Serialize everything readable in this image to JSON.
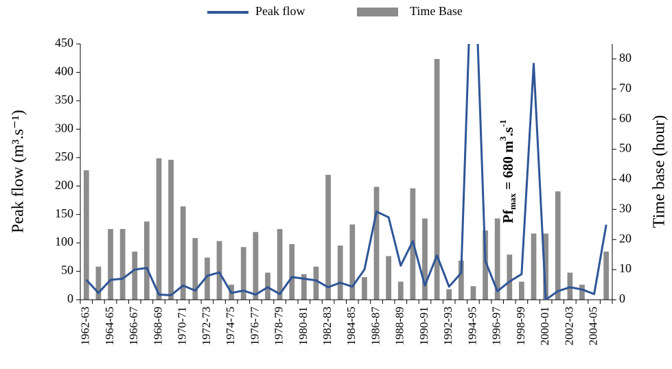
{
  "chart_data": {
    "type": "bar-line",
    "categories": [
      "1962-63",
      null,
      "1964-65",
      null,
      "1966-67",
      null,
      "1968-69",
      null,
      "1970-71",
      null,
      "1972-73",
      null,
      "1974-75",
      null,
      "1976-77",
      null,
      "1978-79",
      null,
      "1980-81",
      null,
      "1982-83",
      null,
      "1984-85",
      null,
      "1986-87",
      null,
      "1988-89",
      null,
      "1990-91",
      null,
      "1992-93",
      null,
      "1994-95",
      null,
      "1996-97",
      null,
      "1998-99",
      null,
      "2000-01",
      null,
      "2002-03",
      null,
      "2004-05",
      null
    ],
    "series": [
      {
        "name": "Peak flow",
        "type": "line",
        "color": "#2e5597",
        "axis": "y",
        "values": [
          35,
          12,
          35,
          37,
          53,
          56,
          9,
          8,
          25,
          16,
          42,
          48,
          12,
          16,
          9,
          22,
          10,
          40,
          37,
          34,
          22,
          30,
          23,
          53,
          155,
          145,
          60,
          103,
          25,
          78,
          23,
          47,
          680,
          68,
          15,
          32,
          45,
          415,
          0,
          15,
          22,
          18,
          10,
          132
        ]
      },
      {
        "name": "Time Base",
        "type": "bar",
        "color": "#8c8c8c",
        "axis": "y2",
        "values": [
          43,
          11,
          23.5,
          23.5,
          16,
          26,
          47,
          46.5,
          31,
          20.5,
          14,
          19.5,
          5,
          17.5,
          22.5,
          9,
          23.5,
          18.5,
          8.5,
          11,
          41.5,
          18,
          25,
          7.5,
          37.5,
          14.5,
          6,
          37,
          27,
          80,
          3.5,
          13,
          4.5,
          23,
          27,
          15,
          6,
          22,
          22,
          36,
          9,
          5,
          null,
          16
        ]
      }
    ],
    "ylabel": "Peak flow (m³.s⁻¹)",
    "y2label": "Time base (hour)",
    "ylim": [
      0,
      450
    ],
    "yticks": [
      0,
      50,
      100,
      150,
      200,
      250,
      300,
      350,
      400,
      450
    ],
    "y2lim": [
      0,
      85
    ],
    "y2ticks": [
      0,
      10,
      20,
      30,
      40,
      50,
      60,
      70,
      80
    ],
    "annotation": [
      "Pf",
      "max",
      " = 680 m",
      "3",
      ".s",
      "-1"
    ],
    "legend": "top"
  }
}
